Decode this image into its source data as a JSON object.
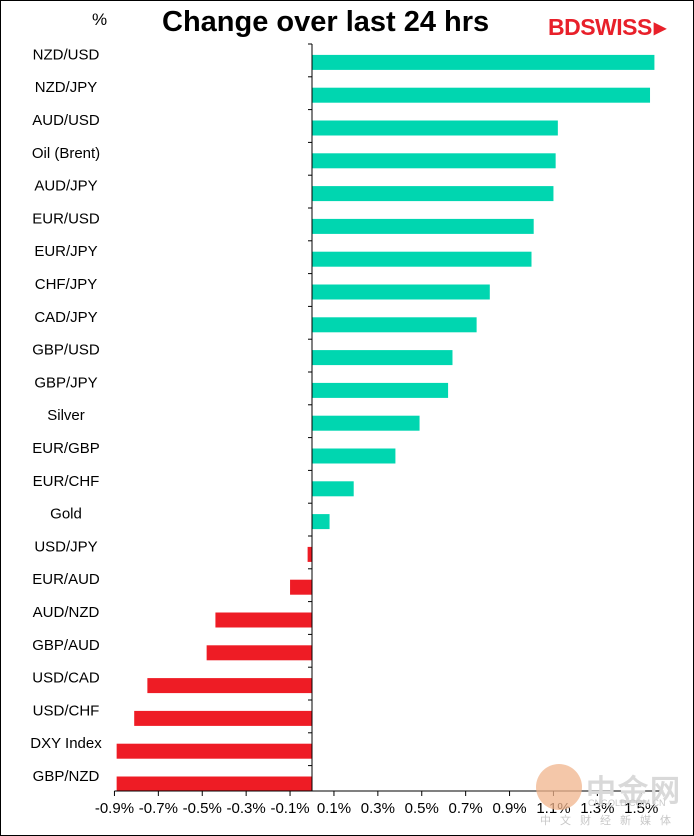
{
  "header": {
    "title": "Change over last 24 hrs",
    "unit": "%",
    "brand": "BDSWISS"
  },
  "watermark": {
    "main": "中金网",
    "url": "CNGOLD.COM.CN",
    "sub": "中文财经新媒体"
  },
  "colors": {
    "positive": "#00d6b0",
    "negative": "#ee1c25",
    "brand": "#e8202a"
  },
  "chart_data": {
    "type": "bar",
    "orientation": "horizontal",
    "title": "Change over last 24 hrs",
    "ylabel": "%",
    "categories": [
      "NZD/USD",
      "NZD/JPY",
      "AUD/USD",
      "Oil (Brent)",
      "AUD/JPY",
      "EUR/USD",
      "EUR/JPY",
      "CHF/JPY",
      "CAD/JPY",
      "GBP/USD",
      "GBP/JPY",
      "Silver",
      "EUR/GBP",
      "EUR/CHF",
      "Gold",
      "USD/JPY",
      "EUR/AUD",
      "AUD/NZD",
      "GBP/AUD",
      "USD/CAD",
      "USD/CHF",
      "DXY Index",
      "GBP/NZD"
    ],
    "values": [
      1.56,
      1.54,
      1.12,
      1.11,
      1.1,
      1.01,
      1.0,
      0.81,
      0.75,
      0.64,
      0.62,
      0.49,
      0.38,
      0.19,
      0.08,
      -0.02,
      -0.1,
      -0.44,
      -0.48,
      -0.75,
      -0.81,
      -0.89,
      -0.89
    ],
    "xlim": [
      -0.9,
      1.6
    ],
    "xticks": [
      "-0.9%",
      "-0.7%",
      "-0.5%",
      "-0.3%",
      "-0.1%",
      "0.1%",
      "0.3%",
      "0.5%",
      "0.7%",
      "0.9%",
      "1.1%",
      "1.3%",
      "1.5%"
    ],
    "xtick_values": [
      -0.9,
      -0.7,
      -0.5,
      -0.3,
      -0.1,
      0.1,
      0.3,
      0.5,
      0.7,
      0.9,
      1.1,
      1.3,
      1.5
    ],
    "grid": false,
    "legend": "none"
  }
}
